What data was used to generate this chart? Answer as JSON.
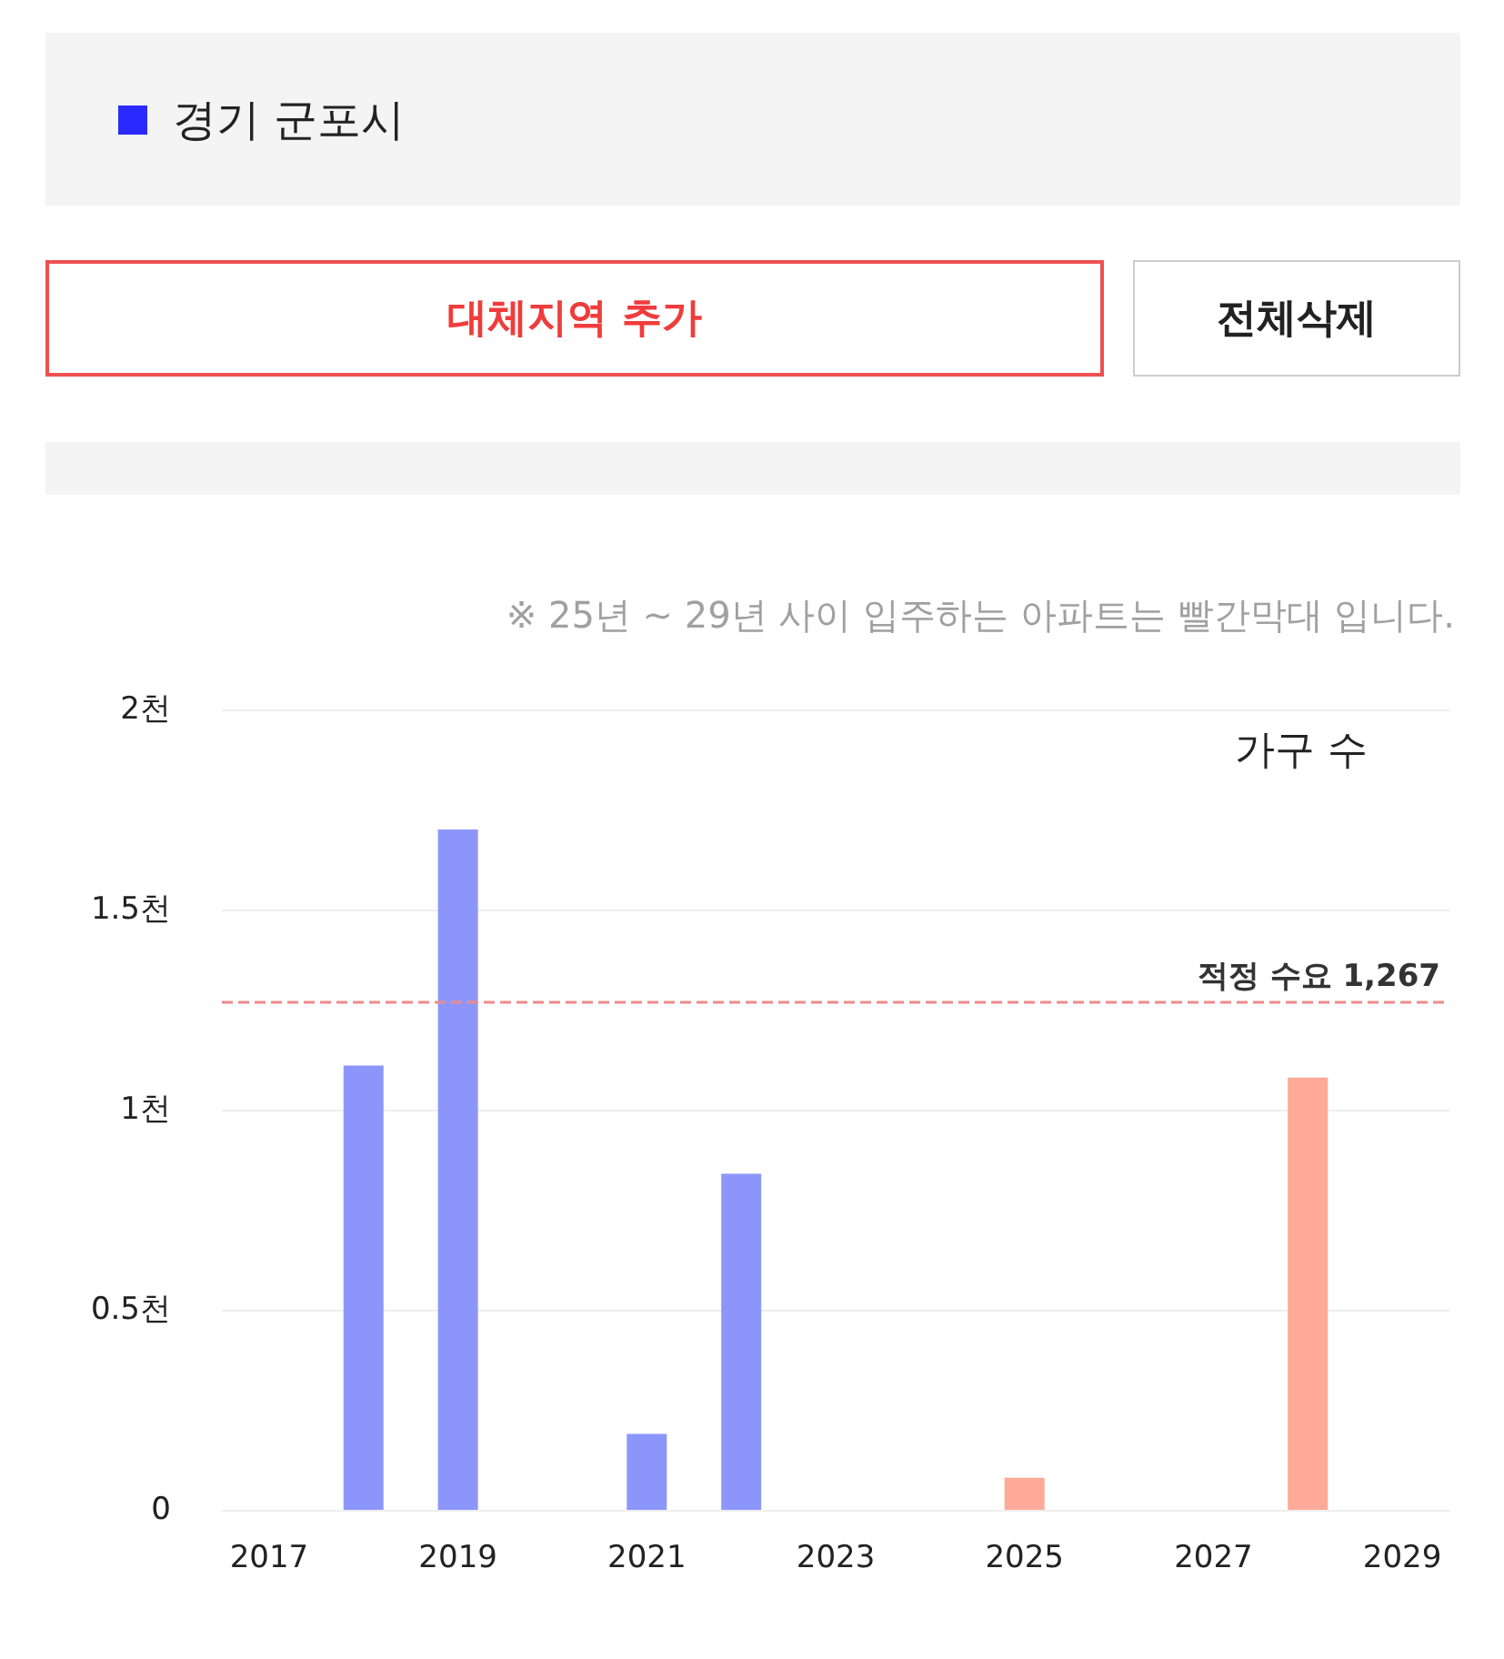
{
  "chart_data": {
    "type": "bar",
    "subtitle": "※ 25년 ~ 29년 사이 입주하는 아파트는 빨간막대 입니다.",
    "ylabel": "가구 수",
    "annotations": [
      "경기 군포시",
      "대체지역 추가",
      "전체삭제"
    ],
    "categories": [
      "2017",
      null,
      "2019",
      null,
      "2021",
      null,
      "2023",
      null,
      "2025",
      null,
      "2027",
      null,
      "2029"
    ],
    "values": [
      0,
      1.11,
      1.7,
      0,
      0.19,
      0.84,
      0,
      0,
      0.08,
      0,
      0,
      1.08,
      0
    ],
    "colors": [
      "#8c96fa",
      "#8c96fa",
      "#8c96fa",
      "#8c96fa",
      "#8c96fa",
      "#8c96fa",
      "#8c96fa",
      "#8c96fa",
      "#fdaa98",
      "#fdaa98",
      "#fdaa98",
      "#fdaa98",
      "#fdaa98"
    ],
    "ylim": [
      0,
      2
    ],
    "yticks": [
      0,
      {
        "value": 0.5,
        "label": "0.5천"
      },
      {
        "value": 1,
        "label": "1천"
      },
      {
        "value": 1.5,
        "label": "1.5천"
      },
      {
        "value": 2,
        "label": "2천"
      }
    ],
    "ref_lines": [
      {
        "axis": "y",
        "value": 1.267,
        "label": "적정 수요 1,267",
        "color": "#f08a8a",
        "line_style": "dashed"
      }
    ],
    "grid": "y"
  }
}
